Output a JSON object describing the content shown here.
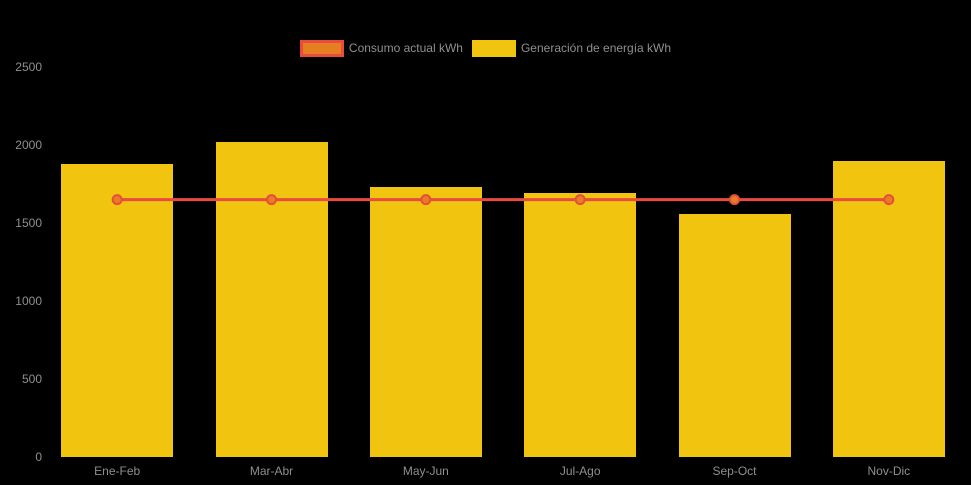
{
  "background": "#000000",
  "text_color": "#8f8f8f",
  "legend": {
    "position": "top",
    "items": [
      {
        "label": "Consumo actual kWh",
        "swatch_fill": "#e67e22",
        "swatch_border": "#e74c3c"
      },
      {
        "label": "Generación de energía kWh",
        "swatch_fill": "#f1c40f",
        "swatch_border": "#f1c40f"
      }
    ]
  },
  "chart_data": {
    "type": "bar",
    "title": "",
    "xlabel": "",
    "ylabel": "",
    "categories": [
      "Ene-Feb",
      "Mar-Abr",
      "May-Jun",
      "Jul-Ago",
      "Sep-Oct",
      "Nov-Dic"
    ],
    "series": [
      {
        "name": "Consumo actual kWh",
        "type": "line",
        "values": [
          1650,
          1650,
          1650,
          1650,
          1650,
          1650
        ],
        "color": "#e74c3c",
        "point_fill": "#e67e22"
      },
      {
        "name": "Generación de energía kWh",
        "type": "bar",
        "values": [
          1880,
          2020,
          1730,
          1690,
          1560,
          1900
        ],
        "color": "#f1c40f"
      }
    ],
    "ylim": [
      0,
      2500
    ],
    "yticks": [
      0,
      500,
      1000,
      1500,
      2000,
      2500
    ],
    "legend_position": "top-center",
    "grid": false
  }
}
